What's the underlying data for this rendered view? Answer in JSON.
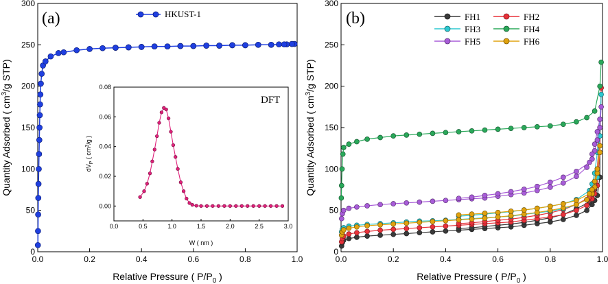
{
  "chart_data": [
    {
      "id": "a",
      "type": "line",
      "panel_label": "(a)",
      "xlabel_main": "Relative Pressure ( P/P",
      "xlabel_sub": "0",
      "xlabel_end": " )",
      "ylabel_main": "Quantity Adsorbed ( cm",
      "ylabel_sup": "3",
      "ylabel_end": "/g STP)",
      "xlim": [
        0,
        1.0
      ],
      "ylim": [
        0,
        300
      ],
      "xticks": [
        "0.0",
        "0.2",
        "0.4",
        "0.6",
        "0.8",
        "1.0"
      ],
      "yticks": [
        "0",
        "50",
        "100",
        "150",
        "200",
        "250",
        "300"
      ],
      "legend_position": "top-center",
      "series": [
        {
          "name": "HKUST-1",
          "color": "#1f3fe0",
          "x": [
            0.0005,
            0.001,
            0.0015,
            0.002,
            0.003,
            0.004,
            0.005,
            0.006,
            0.007,
            0.008,
            0.009,
            0.01,
            0.012,
            0.015,
            0.02,
            0.03,
            0.05,
            0.08,
            0.1,
            0.15,
            0.2,
            0.25,
            0.3,
            0.35,
            0.4,
            0.45,
            0.5,
            0.55,
            0.6,
            0.65,
            0.7,
            0.75,
            0.8,
            0.85,
            0.9,
            0.93,
            0.96,
            0.98,
            0.99,
            0.98,
            0.95,
            0.9,
            0.85,
            0.8,
            0.75,
            0.7,
            0.65,
            0.6,
            0.55,
            0.5,
            0.45,
            0.4,
            0.35,
            0.3
          ],
          "y": [
            8,
            25,
            45,
            65,
            82,
            100,
            118,
            135,
            150,
            165,
            178,
            190,
            203,
            215,
            225,
            230,
            236,
            240,
            241,
            243.5,
            245,
            246,
            246.5,
            247,
            247.5,
            248,
            248,
            248.5,
            248.5,
            249,
            249,
            249.5,
            249.5,
            250,
            250,
            250.5,
            250.5,
            251,
            251,
            251,
            250.5,
            250,
            250,
            249.5,
            249.5,
            249,
            249,
            248.5,
            248.5,
            248,
            248,
            247.5,
            247,
            246.5
          ]
        }
      ],
      "inset": {
        "type": "line",
        "label": "DFT",
        "xlabel": "W ( nm )",
        "ylabel_main": "dV",
        "ylabel_sub": "P",
        "ylabel_mid": " ( cm",
        "ylabel_sup": "3",
        "ylabel_end": "/g )",
        "xlim": [
          0.0,
          3.0
        ],
        "ylim": [
          -0.01,
          0.08
        ],
        "xticks": [
          "0.0",
          "0.5",
          "1.0",
          "1.5",
          "2.0",
          "2.5",
          "3.0"
        ],
        "yticks": [
          "0.00",
          "0.02",
          "0.04",
          "0.06",
          "0.08"
        ],
        "color": "#e0207a",
        "x": [
          0.45,
          0.52,
          0.57,
          0.62,
          0.66,
          0.7,
          0.74,
          0.78,
          0.82,
          0.86,
          0.9,
          0.94,
          0.98,
          1.02,
          1.06,
          1.1,
          1.15,
          1.2,
          1.25,
          1.3,
          1.35,
          1.42,
          1.5,
          1.6,
          1.7,
          1.8,
          1.9,
          2.0,
          2.1,
          2.2,
          2.3,
          2.4,
          2.5,
          2.6,
          2.7,
          2.8,
          2.9
        ],
        "y": [
          0.006,
          0.01,
          0.015,
          0.022,
          0.03,
          0.038,
          0.047,
          0.056,
          0.063,
          0.066,
          0.065,
          0.059,
          0.05,
          0.041,
          0.033,
          0.025,
          0.016,
          0.01,
          0.005,
          0.002,
          0.0008,
          0.0002,
          0.0,
          0.0,
          0.0,
          0.0,
          0.0,
          0.0,
          0.0,
          0.0,
          0.0,
          0.0,
          0.0,
          0.0,
          0.0,
          0.0,
          0.0
        ]
      }
    },
    {
      "id": "b",
      "type": "line",
      "panel_label": "(b)",
      "xlabel_main": "Relative Pressure ( P/P",
      "xlabel_sub": "0",
      "xlabel_end": " )",
      "ylabel_main": "Quantity Adsorbed ( cm",
      "ylabel_sup": "3",
      "ylabel_end": "/g STP)",
      "xlim": [
        0,
        1.0
      ],
      "ylim": [
        0,
        300
      ],
      "xticks": [
        "0.0",
        "0.2",
        "0.4",
        "0.6",
        "0.8",
        "1.0"
      ],
      "yticks": [
        "0",
        "50",
        "100",
        "150",
        "200",
        "250",
        "300"
      ],
      "legend_position": "top-right",
      "series": [
        {
          "name": "FH1",
          "color": "#3a3a3a",
          "x": [
            0.002,
            0.005,
            0.01,
            0.03,
            0.06,
            0.1,
            0.15,
            0.2,
            0.25,
            0.3,
            0.35,
            0.4,
            0.45,
            0.5,
            0.55,
            0.6,
            0.65,
            0.7,
            0.75,
            0.8,
            0.85,
            0.9,
            0.94,
            0.96,
            0.97,
            0.98,
            0.99,
            0.99,
            0.98,
            0.97,
            0.96,
            0.95,
            0.9,
            0.85,
            0.8,
            0.75,
            0.7,
            0.65,
            0.6,
            0.55,
            0.5,
            0.45
          ],
          "y": [
            7,
            11,
            14,
            16,
            17.5,
            19,
            20,
            21,
            22,
            23,
            24,
            25,
            26,
            27,
            28,
            29,
            30,
            32,
            34,
            36,
            39,
            44,
            50,
            57,
            62,
            68,
            90,
            120,
            100,
            75,
            65,
            60,
            52,
            45,
            41,
            38,
            35.5,
            33.5,
            32,
            30.5,
            29,
            28
          ]
        },
        {
          "name": "FH2",
          "color": "#e8323a",
          "x": [
            0.002,
            0.005,
            0.01,
            0.03,
            0.06,
            0.1,
            0.15,
            0.2,
            0.25,
            0.3,
            0.35,
            0.4,
            0.45,
            0.5,
            0.55,
            0.6,
            0.65,
            0.7,
            0.75,
            0.8,
            0.85,
            0.9,
            0.94,
            0.96,
            0.97,
            0.98,
            0.99,
            0.995,
            0.99,
            0.98,
            0.97,
            0.96,
            0.95,
            0.9,
            0.85,
            0.8,
            0.75,
            0.7,
            0.65,
            0.6,
            0.55,
            0.5,
            0.45
          ],
          "y": [
            12,
            16,
            19,
            21.5,
            23,
            24.5,
            26,
            27,
            28,
            29,
            30,
            31,
            32,
            33,
            34,
            35,
            36,
            38,
            40,
            42,
            45,
            50,
            56,
            64,
            70,
            80,
            120,
            198,
            150,
            100,
            80,
            72,
            66,
            57,
            51,
            47,
            44,
            41.5,
            39.5,
            38,
            36.5,
            35,
            34
          ]
        },
        {
          "name": "FH3",
          "color": "#2cc8d0",
          "x": [
            0.002,
            0.005,
            0.01,
            0.03,
            0.06,
            0.1,
            0.15,
            0.2,
            0.25,
            0.3,
            0.35,
            0.4,
            0.45,
            0.5,
            0.55,
            0.6,
            0.65,
            0.7,
            0.75,
            0.8,
            0.85,
            0.9,
            0.94,
            0.96,
            0.97,
            0.98,
            0.99,
            0.995,
            0.99,
            0.98,
            0.97,
            0.96,
            0.95,
            0.9,
            0.85,
            0.8,
            0.75,
            0.7,
            0.65,
            0.6,
            0.55,
            0.5,
            0.45
          ],
          "y": [
            24,
            27,
            29,
            31,
            32,
            33,
            34,
            35,
            36,
            37,
            37.5,
            38,
            39,
            40,
            41,
            42,
            43,
            45,
            47,
            49,
            52,
            57,
            63,
            70,
            78,
            90,
            140,
            190,
            160,
            120,
            95,
            82,
            74,
            63,
            58,
            55,
            52.5,
            50.5,
            48.5,
            47,
            45.5,
            44,
            43
          ]
        },
        {
          "name": "FH4",
          "color": "#2aa85a",
          "x": [
            0.001,
            0.002,
            0.004,
            0.007,
            0.01,
            0.03,
            0.06,
            0.1,
            0.15,
            0.2,
            0.25,
            0.3,
            0.35,
            0.4,
            0.45,
            0.5,
            0.55,
            0.6,
            0.65,
            0.7,
            0.75,
            0.8,
            0.85,
            0.9,
            0.94,
            0.97,
            0.99,
            0.995
          ],
          "y": [
            65,
            80,
            100,
            118,
            126,
            130,
            133,
            136,
            138,
            140,
            141,
            142,
            143,
            144,
            145,
            146,
            147,
            148,
            149,
            150,
            151,
            152,
            154,
            157,
            162,
            170,
            200,
            229
          ]
        },
        {
          "name": "FH5",
          "color": "#a85cd8",
          "x": [
            0.002,
            0.005,
            0.01,
            0.03,
            0.06,
            0.1,
            0.15,
            0.2,
            0.25,
            0.3,
            0.35,
            0.4,
            0.45,
            0.5,
            0.55,
            0.6,
            0.65,
            0.7,
            0.75,
            0.8,
            0.85,
            0.9,
            0.94,
            0.96,
            0.97,
            0.98,
            0.99,
            0.995,
            0.99,
            0.98,
            0.97,
            0.96,
            0.95,
            0.9,
            0.85,
            0.8,
            0.75,
            0.7,
            0.65,
            0.6,
            0.55,
            0.5,
            0.45
          ],
          "y": [
            40,
            46,
            50,
            52.5,
            54,
            55.5,
            57,
            58,
            59,
            60,
            61,
            62,
            63,
            64,
            65,
            67,
            69,
            71,
            74,
            78,
            83,
            91,
            102,
            112,
            122,
            135,
            150,
            175,
            160,
            145,
            130,
            118,
            108,
            97,
            90,
            84,
            79,
            75.5,
            72.5,
            70,
            68,
            66,
            64.5
          ]
        },
        {
          "name": "FH6",
          "color": "#e0a20e",
          "x": [
            0.002,
            0.005,
            0.01,
            0.03,
            0.06,
            0.1,
            0.15,
            0.2,
            0.25,
            0.3,
            0.35,
            0.4,
            0.45,
            0.5,
            0.55,
            0.6,
            0.65,
            0.7,
            0.75,
            0.8,
            0.85,
            0.9,
            0.94,
            0.96,
            0.97,
            0.98,
            0.99,
            0.99,
            0.98,
            0.97,
            0.96,
            0.95,
            0.9,
            0.85,
            0.8,
            0.75,
            0.7,
            0.65,
            0.6,
            0.55,
            0.5,
            0.45
          ],
          "y": [
            20,
            24,
            26.5,
            28.5,
            30,
            31.5,
            32.5,
            33.5,
            34.5,
            35.5,
            36.5,
            37.5,
            38.5,
            39.5,
            40.5,
            42,
            43.5,
            45.5,
            47.5,
            50,
            53,
            57,
            63,
            70,
            78,
            95,
            128,
            120,
            100,
            85,
            75,
            70,
            62,
            58,
            55,
            52.5,
            50.5,
            49,
            47.5,
            46.5,
            45.5,
            44.5
          ]
        }
      ]
    }
  ]
}
